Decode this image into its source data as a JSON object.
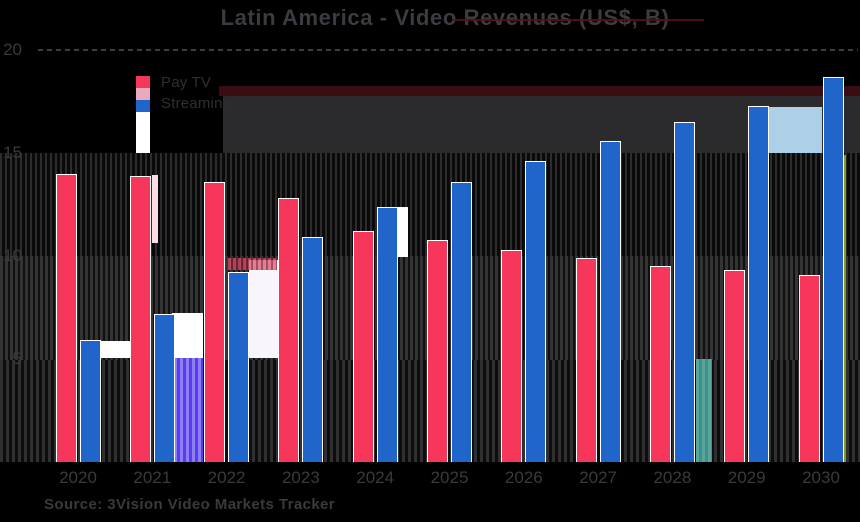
{
  "title": {
    "text": "Latin America - Video Revenues (US$, B)"
  },
  "legend": {
    "items": [
      {
        "label": "Pay TV",
        "color": "#f7365c"
      },
      {
        "label": "Streaming",
        "color": "#2065c9"
      }
    ]
  },
  "y_axis": {
    "ticks": [
      "20",
      "15",
      "10",
      "5"
    ],
    "tick_values": [
      20,
      15,
      10,
      5
    ]
  },
  "x_axis": {
    "labels": [
      "2020",
      "2021",
      "2022",
      "2023",
      "2024",
      "2025",
      "2026",
      "2027",
      "2028",
      "2029",
      "2030"
    ]
  },
  "source": {
    "text": "Source: 3Vision Video Markets Tracker"
  },
  "chart_data": {
    "type": "bar",
    "title": "Latin America - Video Revenues (US$, B)",
    "categories": [
      "2020",
      "2021",
      "2022",
      "2023",
      "2024",
      "2025",
      "2026",
      "2027",
      "2028",
      "2029",
      "2030"
    ],
    "series": [
      {
        "name": "Pay TV",
        "color": "#f7365c",
        "values": [
          14.0,
          13.9,
          13.6,
          12.8,
          11.2,
          10.8,
          10.3,
          9.9,
          9.5,
          9.3,
          9.1
        ]
      },
      {
        "name": "Streaming",
        "color": "#2065c9",
        "values": [
          5.9,
          7.2,
          9.2,
          10.9,
          12.4,
          13.6,
          14.6,
          15.6,
          16.5,
          17.3,
          18.7
        ]
      }
    ],
    "xlabel": "",
    "ylabel": "",
    "ylim": [
      0,
      20
    ],
    "yticks": [
      5,
      10,
      15,
      20
    ],
    "grid": "dashed-horizontal",
    "legend_position": "top-left"
  },
  "glitch_colors": {
    "background": "#000000",
    "stripe_dark": "#0a0a0a",
    "stripe_gray": "#303030",
    "charcoal_block": "#2b2b2d",
    "maroon_band": "#3a0d12",
    "light_blue_rect": "#aecfe8",
    "purple_bar": "#5a3bf0",
    "teal_bar": "#418f86",
    "olive_line": "#87991f",
    "pink_strip": "#fbdde6",
    "legend_pink_swatch": "#e9a9bc"
  }
}
